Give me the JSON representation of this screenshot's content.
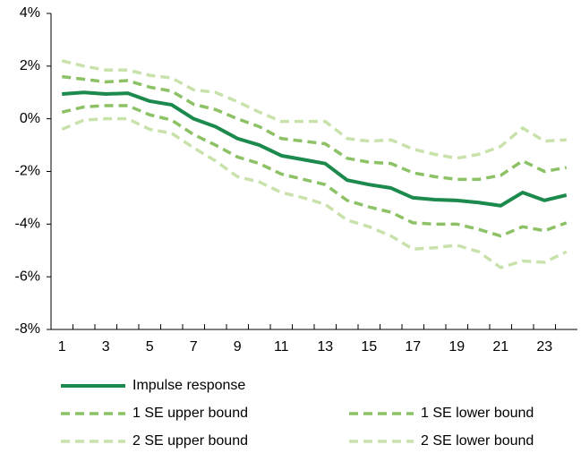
{
  "chart_data": {
    "type": "line",
    "categories": [
      "1",
      null,
      "3",
      null,
      "5",
      null,
      "7",
      null,
      "9",
      null,
      "11",
      null,
      "13",
      null,
      "15",
      null,
      "17",
      null,
      "19",
      null,
      "21",
      null,
      "23",
      null
    ],
    "series": [
      {
        "name": "Impulse response",
        "color": "#1b8a4c",
        "style": "solid",
        "values": [
          0.94,
          1.0,
          0.94,
          0.97,
          0.67,
          0.53,
          0.0,
          -0.3,
          -0.75,
          -1.0,
          -1.4,
          -1.55,
          -1.7,
          -2.33,
          -2.5,
          -2.63,
          -3.0,
          -3.07,
          -3.1,
          -3.18,
          -3.3,
          -2.8,
          -3.1,
          -2.9
        ]
      },
      {
        "name": "1 SE lower bound",
        "color": "#8cc265",
        "style": "dashed",
        "values": [
          0.25,
          0.45,
          0.5,
          0.5,
          0.15,
          -0.05,
          -0.6,
          -1.0,
          -1.45,
          -1.7,
          -2.1,
          -2.3,
          -2.5,
          -3.1,
          -3.35,
          -3.55,
          -3.95,
          -4.0,
          -4.0,
          -4.2,
          -4.45,
          -4.1,
          -4.25,
          -3.95
        ]
      },
      {
        "name": "1 SE upper bound",
        "color": "#8cc265",
        "style": "dashed",
        "values": [
          1.6,
          1.5,
          1.4,
          1.45,
          1.2,
          1.05,
          0.55,
          0.35,
          0.0,
          -0.3,
          -0.75,
          -0.85,
          -0.95,
          -1.5,
          -1.65,
          -1.7,
          -2.05,
          -2.2,
          -2.3,
          -2.3,
          -2.15,
          -1.6,
          -2.0,
          -1.85
        ]
      },
      {
        "name": "2 SE lower bound",
        "color": "#c9e2ab",
        "style": "dashed",
        "values": [
          -0.4,
          -0.05,
          0.0,
          0.0,
          -0.4,
          -0.55,
          -1.1,
          -1.6,
          -2.2,
          -2.4,
          -2.8,
          -3.0,
          -3.25,
          -3.85,
          -4.1,
          -4.45,
          -4.95,
          -4.9,
          -4.8,
          -5.05,
          -5.65,
          -5.4,
          -5.45,
          -5.05
        ]
      },
      {
        "name": "2 SE upper bound",
        "color": "#c9e2ab",
        "style": "dashed",
        "values": [
          2.2,
          2.0,
          1.85,
          1.85,
          1.65,
          1.55,
          1.1,
          1.0,
          0.65,
          0.25,
          -0.1,
          -0.1,
          -0.1,
          -0.75,
          -0.85,
          -0.8,
          -1.15,
          -1.35,
          -1.5,
          -1.35,
          -1.05,
          -0.35,
          -0.85,
          -0.8
        ]
      }
    ],
    "ylim": [
      -8,
      4
    ],
    "yticks": [
      {
        "value": -8,
        "label": "-8%"
      },
      {
        "value": -6,
        "label": "-6%"
      },
      {
        "value": -4,
        "label": "-4%"
      },
      {
        "value": -2,
        "label": "-2%"
      },
      {
        "value": 0,
        "label": "0%"
      },
      {
        "value": 2,
        "label": "2%"
      },
      {
        "value": 4,
        "label": "4%"
      }
    ],
    "grid": false
  }
}
